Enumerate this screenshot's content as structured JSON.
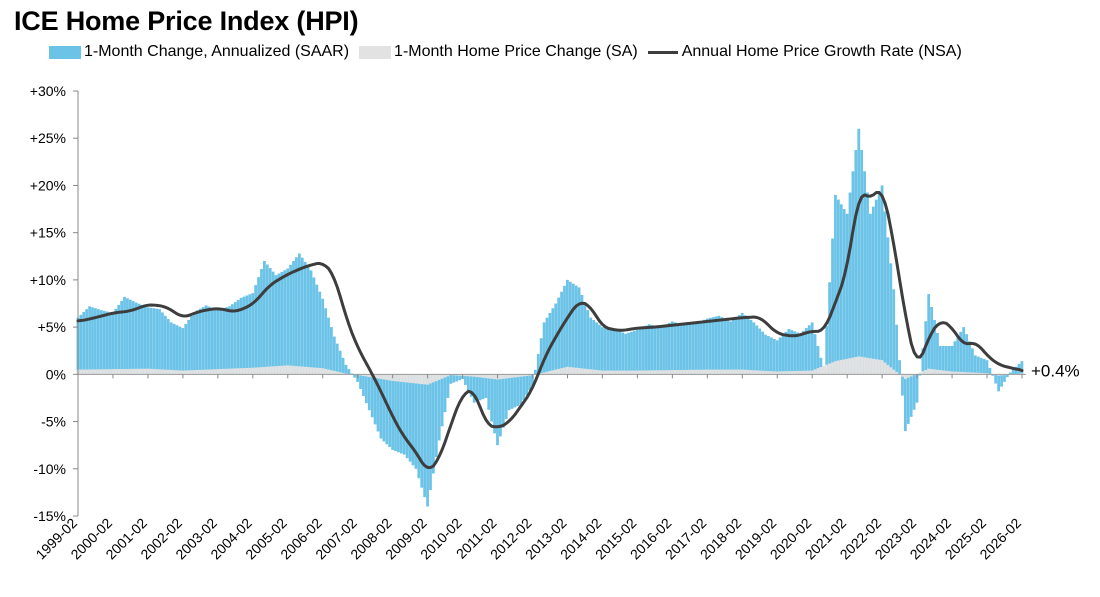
{
  "chart_data": {
    "type": "bar",
    "title": "ICE Home Price Index (HPI)",
    "ylim": [
      -15,
      30
    ],
    "y_ticks": [
      -15,
      -10,
      -5,
      0,
      5,
      10,
      15,
      20,
      25,
      30
    ],
    "y_tick_labels": [
      "-15%",
      "-10%",
      "-5%",
      "0%",
      "+5%",
      "+10%",
      "+15%",
      "+20%",
      "+25%",
      "+30%"
    ],
    "x_range": [
      "1999-02",
      "2026-02"
    ],
    "x_tick_labels": [
      "1999-02",
      "2000-02",
      "2001-02",
      "2002-02",
      "2003-02",
      "2004-02",
      "2005-02",
      "2006-02",
      "2007-02",
      "2008-02",
      "2009-02",
      "2010-02",
      "2011-02",
      "2012-02",
      "2013-02",
      "2014-02",
      "2015-02",
      "2016-02",
      "2017-02",
      "2018-02",
      "2019-02",
      "2020-02",
      "2021-02",
      "2022-02",
      "2023-02",
      "2024-02",
      "2025-02",
      "2026-02"
    ],
    "grid": false,
    "legend_position": "top",
    "colors": {
      "saar": "#6cc3e8",
      "sa": "#e2e2e2",
      "nsa": "#3d3d3d"
    },
    "end_label": "+0.4%",
    "series": [
      {
        "name": "1-Month Change, Annualized (SAAR)",
        "type": "bar",
        "note_resolution": "key points, monthly values interpolated",
        "points": [
          [
            "1999-02",
            6.0
          ],
          [
            "1999-06",
            7.2
          ],
          [
            "1999-10",
            6.8
          ],
          [
            "2000-02",
            6.5
          ],
          [
            "2000-06",
            8.2
          ],
          [
            "2000-10",
            7.6
          ],
          [
            "2001-02",
            7.1
          ],
          [
            "2001-06",
            6.9
          ],
          [
            "2001-10",
            5.5
          ],
          [
            "2002-02",
            4.9
          ],
          [
            "2002-06",
            6.6
          ],
          [
            "2002-10",
            7.3
          ],
          [
            "2003-02",
            6.8
          ],
          [
            "2003-06",
            7.2
          ],
          [
            "2003-10",
            8.1
          ],
          [
            "2004-02",
            8.6
          ],
          [
            "2004-06",
            12.0
          ],
          [
            "2004-10",
            10.5
          ],
          [
            "2005-02",
            11.2
          ],
          [
            "2005-06",
            12.8
          ],
          [
            "2005-10",
            11.0
          ],
          [
            "2006-02",
            8.0
          ],
          [
            "2006-06",
            4.0
          ],
          [
            "2006-10",
            1.0
          ],
          [
            "2007-02",
            -0.8
          ],
          [
            "2007-06",
            -3.8
          ],
          [
            "2007-10",
            -6.8
          ],
          [
            "2008-02",
            -8.0
          ],
          [
            "2008-06",
            -8.5
          ],
          [
            "2008-10",
            -10.0
          ],
          [
            "2009-02",
            -14.0
          ],
          [
            "2009-06",
            -7.0
          ],
          [
            "2009-10",
            -1.0
          ],
          [
            "2010-02",
            -0.5
          ],
          [
            "2010-06",
            -3.0
          ],
          [
            "2010-10",
            -2.5
          ],
          [
            "2011-02",
            -7.5
          ],
          [
            "2011-06",
            -3.8
          ],
          [
            "2011-10",
            -3.2
          ],
          [
            "2012-02",
            -1.2
          ],
          [
            "2012-06",
            5.5
          ],
          [
            "2012-10",
            7.5
          ],
          [
            "2013-02",
            10.0
          ],
          [
            "2013-06",
            9.2
          ],
          [
            "2013-10",
            6.0
          ],
          [
            "2014-02",
            5.0
          ],
          [
            "2014-06",
            4.8
          ],
          [
            "2014-10",
            4.3
          ],
          [
            "2015-02",
            4.7
          ],
          [
            "2015-06",
            5.3
          ],
          [
            "2015-10",
            5.0
          ],
          [
            "2016-02",
            5.6
          ],
          [
            "2016-06",
            5.2
          ],
          [
            "2016-10",
            5.4
          ],
          [
            "2017-02",
            5.9
          ],
          [
            "2017-06",
            6.2
          ],
          [
            "2017-10",
            5.6
          ],
          [
            "2018-02",
            6.5
          ],
          [
            "2018-06",
            5.5
          ],
          [
            "2018-10",
            4.2
          ],
          [
            "2019-02",
            3.6
          ],
          [
            "2019-06",
            4.8
          ],
          [
            "2019-10",
            4.3
          ],
          [
            "2020-02",
            5.5
          ],
          [
            "2020-06",
            0.5
          ],
          [
            "2020-10",
            19.0
          ],
          [
            "2021-02",
            17.0
          ],
          [
            "2021-06",
            26.0
          ],
          [
            "2021-10",
            17.0
          ],
          [
            "2022-02",
            20.0
          ],
          [
            "2022-06",
            9.0
          ],
          [
            "2022-10",
            -6.0
          ],
          [
            "2023-02",
            -3.0
          ],
          [
            "2023-06",
            8.5
          ],
          [
            "2023-10",
            3.0
          ],
          [
            "2024-02",
            3.0
          ],
          [
            "2024-06",
            5.0
          ],
          [
            "2024-10",
            2.0
          ],
          [
            "2025-02",
            1.5
          ],
          [
            "2025-06",
            -1.8
          ],
          [
            "2025-10",
            0.2
          ],
          [
            "2026-02",
            1.4
          ]
        ]
      },
      {
        "name": "1-Month Home Price Change (SA)",
        "type": "bar",
        "note_resolution": "key points, monthly values interpolated",
        "points": [
          [
            "1999-02",
            0.5
          ],
          [
            "2000-02",
            0.55
          ],
          [
            "2001-02",
            0.6
          ],
          [
            "2002-02",
            0.4
          ],
          [
            "2003-02",
            0.55
          ],
          [
            "2004-02",
            0.7
          ],
          [
            "2005-02",
            0.95
          ],
          [
            "2006-02",
            0.65
          ],
          [
            "2006-10",
            0.08
          ],
          [
            "2007-02",
            -0.07
          ],
          [
            "2008-02",
            -0.7
          ],
          [
            "2009-02",
            -1.1
          ],
          [
            "2009-10",
            -0.08
          ],
          [
            "2010-06",
            -0.25
          ],
          [
            "2011-02",
            -0.55
          ],
          [
            "2012-02",
            -0.1
          ],
          [
            "2013-02",
            0.8
          ],
          [
            "2014-02",
            0.4
          ],
          [
            "2015-02",
            0.4
          ],
          [
            "2016-02",
            0.45
          ],
          [
            "2017-02",
            0.5
          ],
          [
            "2018-02",
            0.5
          ],
          [
            "2019-02",
            0.3
          ],
          [
            "2020-02",
            0.4
          ],
          [
            "2020-10",
            1.4
          ],
          [
            "2021-06",
            1.9
          ],
          [
            "2022-02",
            1.5
          ],
          [
            "2022-10",
            -0.5
          ],
          [
            "2023-06",
            0.6
          ],
          [
            "2024-02",
            0.3
          ],
          [
            "2025-02",
            0.12
          ],
          [
            "2025-06",
            -0.15
          ],
          [
            "2026-02",
            0.1
          ]
        ]
      },
      {
        "name": "Annual Home Price Growth Rate (NSA)",
        "type": "line",
        "points": [
          [
            "1999-02",
            5.6
          ],
          [
            "1999-08",
            6.0
          ],
          [
            "2000-02",
            6.5
          ],
          [
            "2000-08",
            6.7
          ],
          [
            "2001-02",
            7.4
          ],
          [
            "2001-08",
            7.2
          ],
          [
            "2002-02",
            6.0
          ],
          [
            "2002-08",
            6.7
          ],
          [
            "2003-02",
            7.0
          ],
          [
            "2003-08",
            6.6
          ],
          [
            "2004-02",
            7.4
          ],
          [
            "2004-08",
            9.5
          ],
          [
            "2005-02",
            10.6
          ],
          [
            "2005-08",
            11.4
          ],
          [
            "2006-02",
            11.9
          ],
          [
            "2006-06",
            10.5
          ],
          [
            "2006-10",
            6.0
          ],
          [
            "2007-02",
            2.8
          ],
          [
            "2007-06",
            0.6
          ],
          [
            "2007-10",
            -1.8
          ],
          [
            "2008-02",
            -4.5
          ],
          [
            "2008-06",
            -6.7
          ],
          [
            "2008-10",
            -8.2
          ],
          [
            "2009-02",
            -10.4
          ],
          [
            "2009-06",
            -9.0
          ],
          [
            "2009-10",
            -5.3
          ],
          [
            "2010-02",
            -2.0
          ],
          [
            "2010-06",
            -1.6
          ],
          [
            "2010-10",
            -5.3
          ],
          [
            "2011-02",
            -5.7
          ],
          [
            "2011-06",
            -5.1
          ],
          [
            "2011-10",
            -3.4
          ],
          [
            "2012-02",
            -1.6
          ],
          [
            "2012-06",
            1.7
          ],
          [
            "2012-10",
            4.0
          ],
          [
            "2013-02",
            6.0
          ],
          [
            "2013-06",
            7.8
          ],
          [
            "2013-10",
            7.2
          ],
          [
            "2014-02",
            5.0
          ],
          [
            "2014-08",
            4.6
          ],
          [
            "2015-02",
            4.9
          ],
          [
            "2015-08",
            5.0
          ],
          [
            "2016-02",
            5.2
          ],
          [
            "2016-08",
            5.4
          ],
          [
            "2017-02",
            5.6
          ],
          [
            "2017-08",
            5.8
          ],
          [
            "2018-02",
            6.0
          ],
          [
            "2018-08",
            6.1
          ],
          [
            "2019-02",
            4.3
          ],
          [
            "2019-08",
            4.0
          ],
          [
            "2020-02",
            4.6
          ],
          [
            "2020-06",
            4.5
          ],
          [
            "2020-10",
            7.6
          ],
          [
            "2021-02",
            11.0
          ],
          [
            "2021-06",
            19.5
          ],
          [
            "2021-10",
            18.5
          ],
          [
            "2022-02",
            20.0
          ],
          [
            "2022-06",
            14.0
          ],
          [
            "2022-10",
            6.0
          ],
          [
            "2023-02",
            0.5
          ],
          [
            "2023-06",
            4.0
          ],
          [
            "2023-10",
            5.8
          ],
          [
            "2024-02",
            5.0
          ],
          [
            "2024-06",
            3.0
          ],
          [
            "2024-10",
            3.5
          ],
          [
            "2025-02",
            2.0
          ],
          [
            "2025-06",
            1.0
          ],
          [
            "2025-10",
            0.7
          ],
          [
            "2026-02",
            0.4
          ]
        ]
      }
    ]
  }
}
